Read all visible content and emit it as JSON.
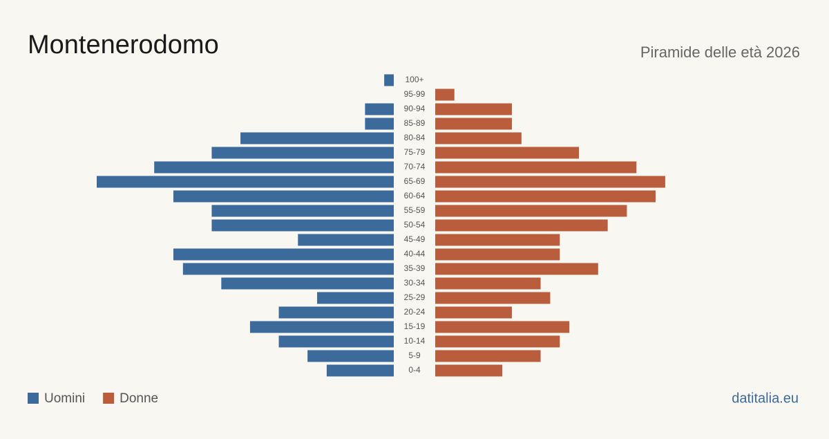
{
  "chart_data": {
    "type": "pyramid",
    "title": "Montenerodomo",
    "subtitle": "Piramide delle età 2026",
    "source": "datitalia.eu",
    "categories": [
      "100+",
      "95-99",
      "90-94",
      "85-89",
      "80-84",
      "75-79",
      "70-74",
      "65-69",
      "60-64",
      "55-59",
      "50-54",
      "45-49",
      "40-44",
      "35-39",
      "30-34",
      "25-29",
      "20-24",
      "15-19",
      "10-14",
      "5-9",
      "0-4"
    ],
    "series": [
      {
        "name": "Uomini",
        "color": "#3b6a9b",
        "values": [
          1,
          0,
          3,
          3,
          16,
          19,
          25,
          31,
          23,
          19,
          19,
          10,
          23,
          22,
          18,
          8,
          12,
          15,
          12,
          9,
          7
        ]
      },
      {
        "name": "Donne",
        "color": "#b95d3d",
        "values": [
          0,
          2,
          8,
          8,
          9,
          15,
          21,
          24,
          23,
          20,
          18,
          13,
          13,
          17,
          11,
          12,
          8,
          14,
          13,
          11,
          7
        ]
      }
    ]
  }
}
